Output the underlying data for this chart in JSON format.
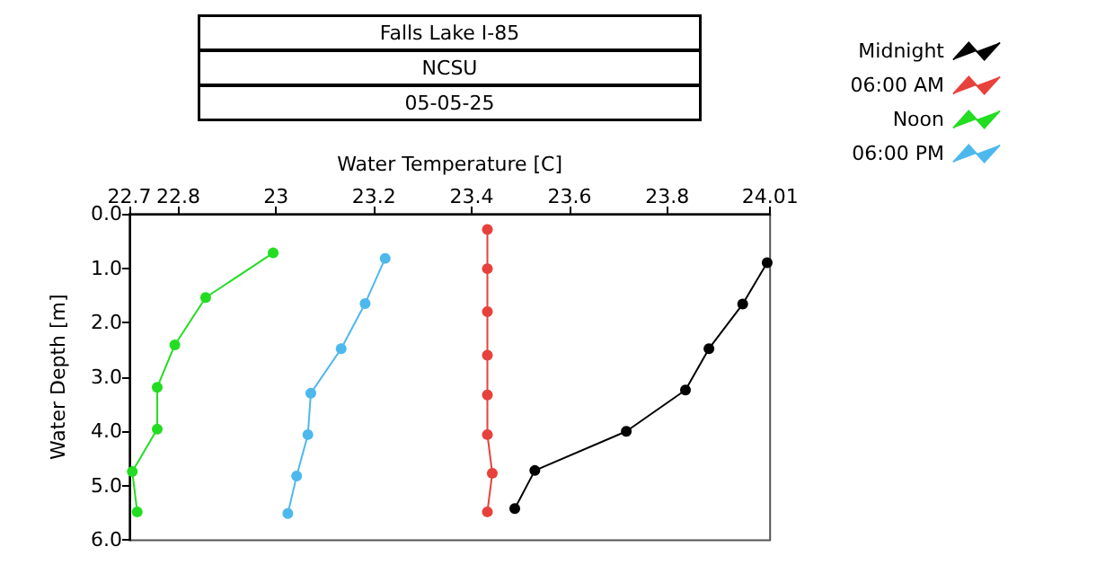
{
  "chart_data": {
    "type": "line",
    "title": "Falls Lake I-85",
    "subtitle": "NCSU",
    "annotations": [
      "05-05-25"
    ],
    "xlabel": "Water Temperature [C]",
    "ylabel": "Water Depth [m]",
    "xlim": [
      22.7,
      24.01
    ],
    "xticks": [
      22.7,
      22.8,
      23,
      23.2,
      23.4,
      23.6,
      23.8,
      24.01
    ],
    "ylim": [
      6,
      0
    ],
    "yticks": [
      {
        "value": 0,
        "label": "0.0"
      },
      {
        "value": 1,
        "label": "1.0"
      },
      {
        "value": 2,
        "label": "2.0"
      },
      {
        "value": 3,
        "label": "3.0"
      },
      {
        "value": 4,
        "label": "4.0"
      },
      {
        "value": 5,
        "label": "5.0"
      },
      {
        "value": 6,
        "label": "6.0"
      }
    ],
    "grid": false,
    "legend": "top right",
    "marker": "circle",
    "line_style": "solid",
    "series": [
      {
        "name": "Midnight",
        "color": "#000000",
        "x": [
          24.004,
          23.954,
          23.885,
          23.837,
          23.716,
          23.529,
          23.488
        ],
        "values": [
          0.9,
          1.66,
          2.48,
          3.24,
          4.0,
          4.72,
          5.42
        ]
      },
      {
        "name": "06:00 AM",
        "color": "#e8413c",
        "x": [
          23.432,
          23.432,
          23.432,
          23.432,
          23.432,
          23.432,
          23.442,
          23.432
        ],
        "values": [
          0.29,
          1.01,
          1.8,
          2.6,
          3.33,
          4.06,
          4.77,
          5.48
        ]
      },
      {
        "name": "Noon",
        "color": "#22dd22",
        "x": [
          22.994,
          22.856,
          22.793,
          22.757,
          22.757,
          22.706,
          22.716
        ],
        "values": [
          0.72,
          1.54,
          2.41,
          3.19,
          3.96,
          4.74,
          5.48
        ]
      },
      {
        "name": "06:00 PM",
        "color": "#4db8ee",
        "x": [
          23.223,
          23.182,
          23.133,
          23.071,
          23.065,
          23.042,
          23.024
        ],
        "values": [
          0.82,
          1.65,
          2.48,
          3.3,
          4.06,
          4.82,
          5.51
        ]
      }
    ]
  }
}
